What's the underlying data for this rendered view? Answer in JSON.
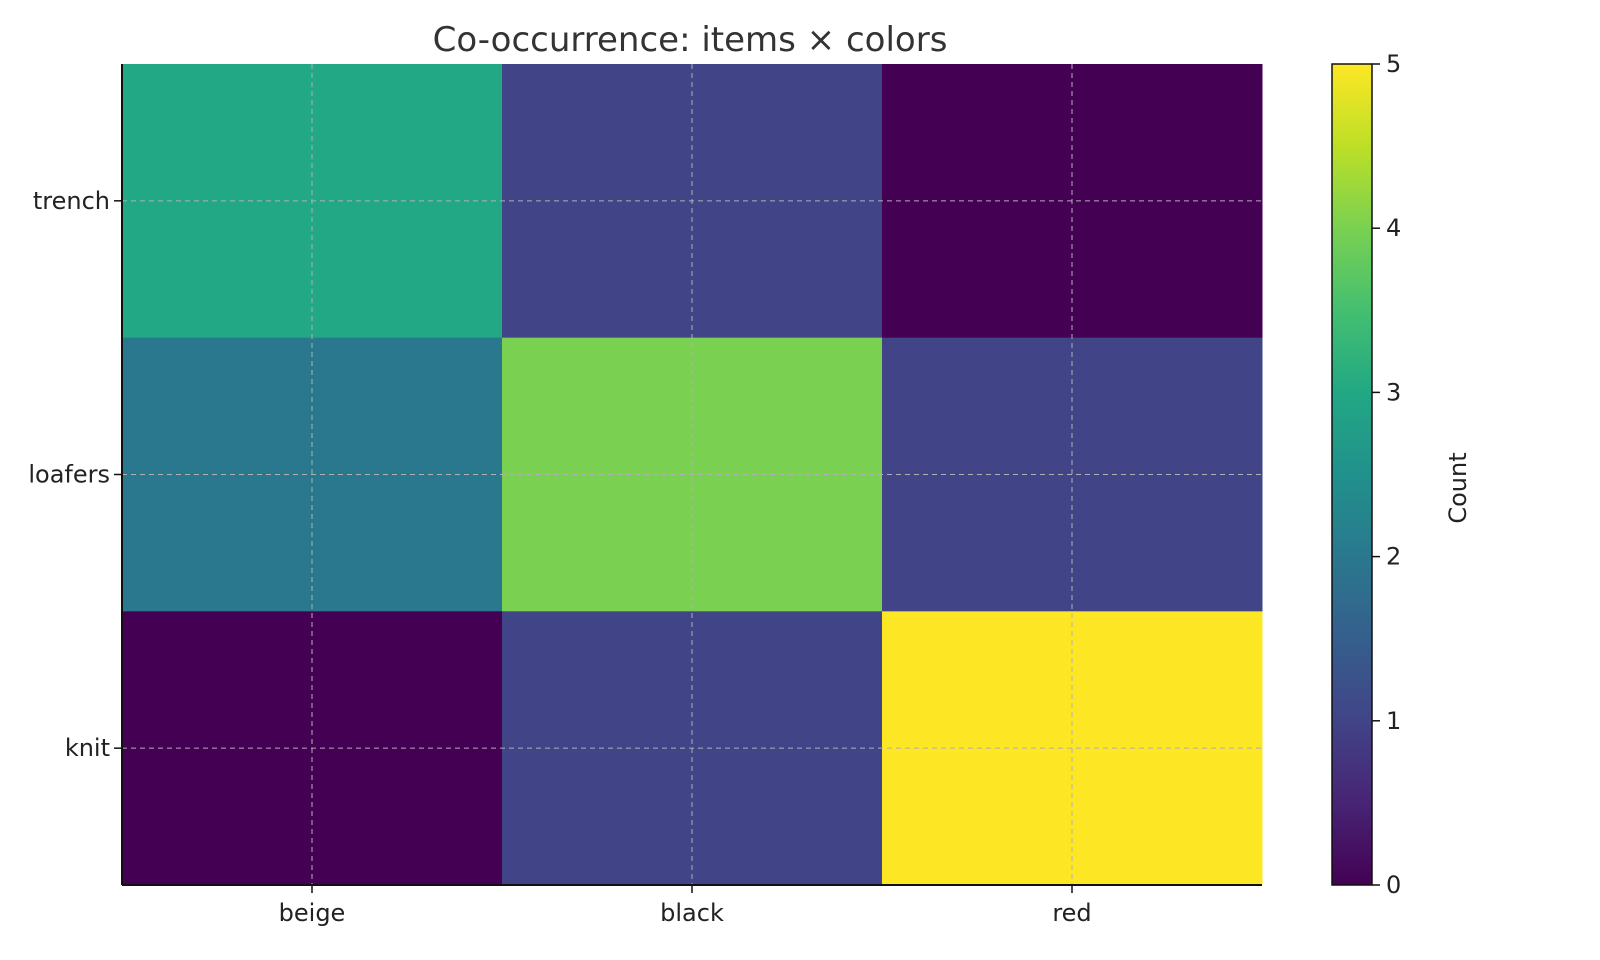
{
  "chart_data": {
    "type": "heatmap",
    "title": "Co-occurrence: items × colors",
    "x_categories": [
      "beige",
      "black",
      "red"
    ],
    "y_categories": [
      "trench",
      "loafers",
      "knit"
    ],
    "values": [
      [
        3,
        1,
        0
      ],
      [
        2,
        4,
        1
      ],
      [
        0,
        1,
        5
      ]
    ],
    "colorbar": {
      "label": "Count",
      "range": [
        0,
        5
      ],
      "ticks": [
        0,
        1,
        2,
        3,
        4,
        5
      ],
      "colormap": "viridis"
    },
    "grid": true
  }
}
